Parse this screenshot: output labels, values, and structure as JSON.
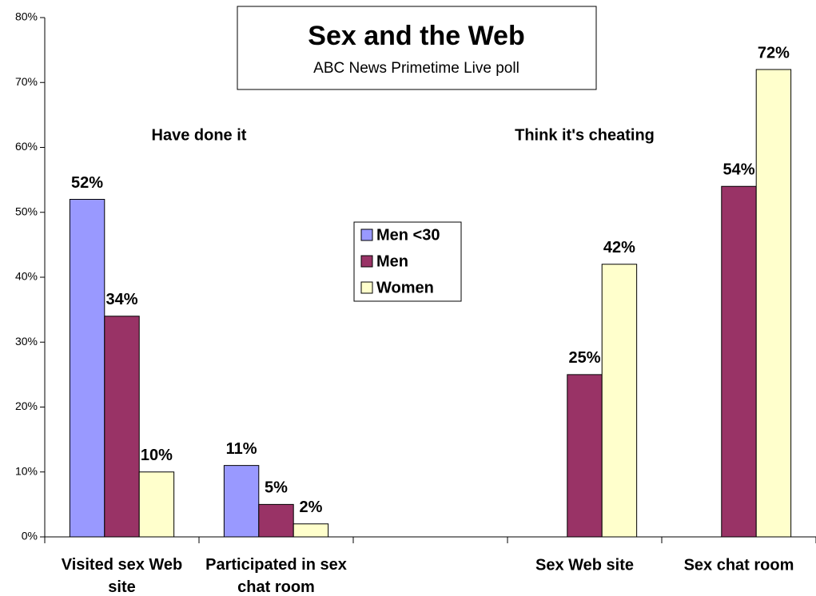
{
  "chart_data": {
    "type": "bar",
    "title": "Sex and the Web",
    "subtitle": "ABC News Primetime Live poll",
    "annotations": [
      "Have done it",
      "Think it's cheating"
    ],
    "categories": [
      "Visited sex Web site",
      "Participated in sex chat room",
      null,
      "Sex Web site",
      "Sex chat room"
    ],
    "series": [
      {
        "name": "Men <30",
        "color": "#9999ff",
        "values": [
          52,
          11,
          null,
          null,
          null
        ],
        "value_labels": [
          "52%",
          "11%",
          null,
          null,
          null
        ]
      },
      {
        "name": "Men",
        "color": "#993366",
        "values": [
          34,
          5,
          null,
          25,
          54
        ],
        "value_labels": [
          "34%",
          "5%",
          null,
          "25%",
          "54%"
        ]
      },
      {
        "name": "Women",
        "color": "#ffffcc",
        "values": [
          10,
          2,
          null,
          42,
          72
        ],
        "value_labels": [
          "10%",
          "2%",
          null,
          "42%",
          "72%"
        ]
      }
    ],
    "ylim": [
      0,
      80
    ],
    "yticks": [
      {
        "value": 0,
        "label": "0%"
      },
      {
        "value": 10,
        "label": "10%"
      },
      {
        "value": 20,
        "label": "20%"
      },
      {
        "value": 30,
        "label": "30%"
      },
      {
        "value": 40,
        "label": "40%"
      },
      {
        "value": 50,
        "label": "50%"
      },
      {
        "value": 60,
        "label": "60%"
      },
      {
        "value": 70,
        "label": "70%"
      },
      {
        "value": 80,
        "label": "80%"
      }
    ],
    "grid": false,
    "legend": "center"
  }
}
